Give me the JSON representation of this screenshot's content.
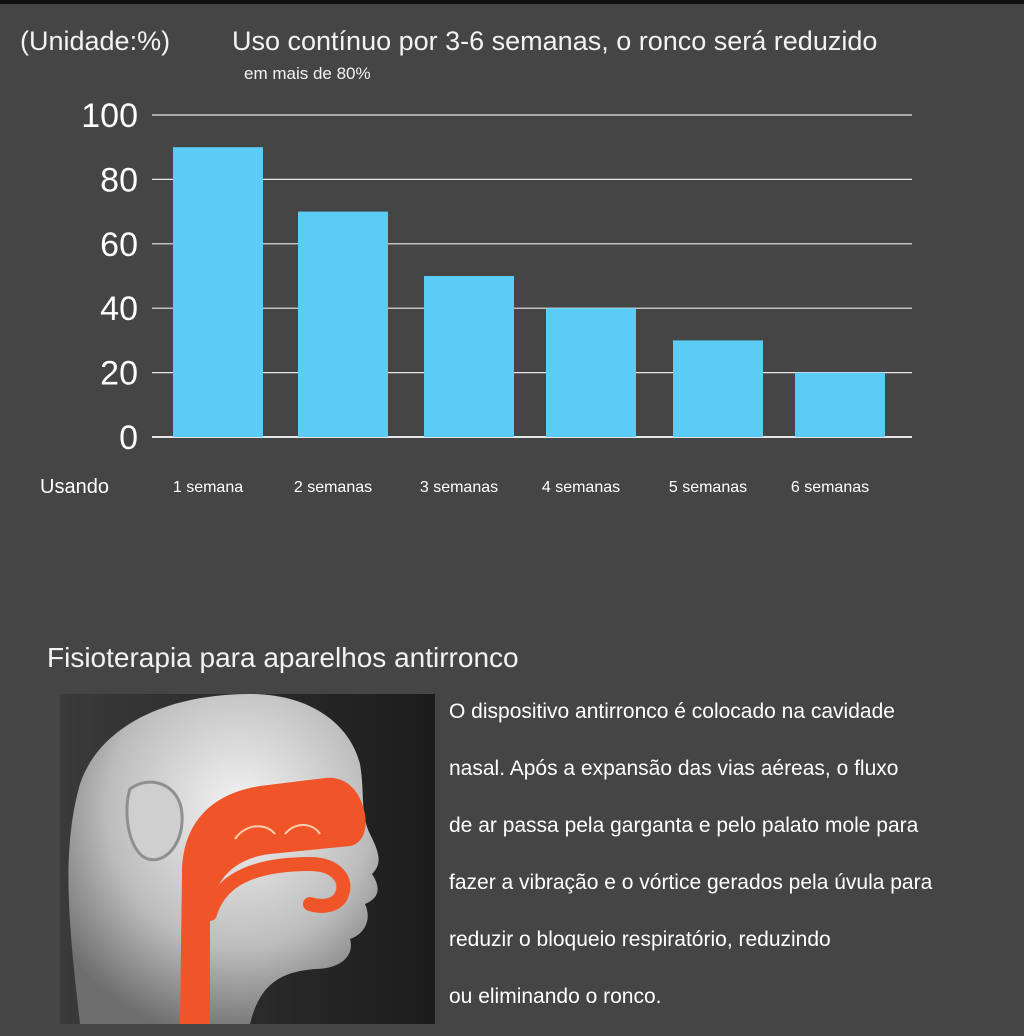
{
  "header": {
    "unit": "(Unidade:%)",
    "title": "Uso contínuo por 3-6 semanas, o ronco será reduzido",
    "subtitle": "em mais de 80%"
  },
  "chart_data": {
    "type": "bar",
    "categories": [
      "1 semana",
      "2 semanas",
      "3 semanas",
      "4 semanas",
      "5 semanas",
      "6 semanas"
    ],
    "values": [
      90,
      70,
      50,
      40,
      30,
      20
    ],
    "yticks": [
      0,
      20,
      40,
      60,
      80,
      100
    ],
    "ylim": [
      0,
      100
    ],
    "xlabel": "Usando",
    "grid": true,
    "bar_color": "#5bccf6"
  },
  "section": {
    "title": "Fisioterapia para aparelhos antirronco",
    "description_lines": [
      "O dispositivo antirronco é colocado na cavidade",
      "nasal. Após a expansão das vias aéreas, o fluxo",
      "de ar passa pela garganta e pelo palato mole para",
      "fazer a vibração e o vórtice gerados pela úvula para",
      "reduzir o bloqueio respiratório, reduzindo",
      "ou eliminando o ronco."
    ]
  },
  "colors": {
    "background": "#454545",
    "bar": "#5bccf6",
    "airway": "#f0552a"
  }
}
